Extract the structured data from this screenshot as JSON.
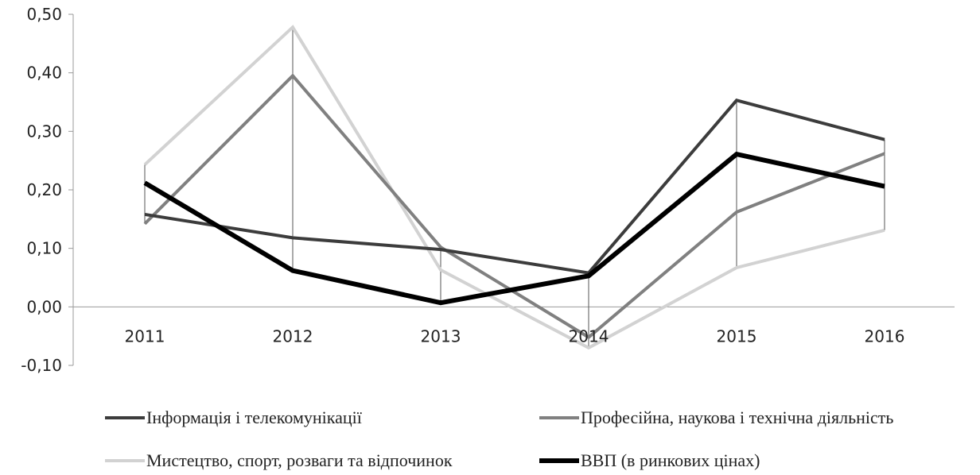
{
  "chart_data": {
    "type": "line",
    "title": "",
    "xlabel": "",
    "ylabel": "",
    "x": [
      "2011",
      "2012",
      "2013",
      "2014",
      "2015",
      "2016"
    ],
    "y_ticks": [
      "-0,10",
      "0,00",
      "0,10",
      "0,20",
      "0,30",
      "0,40",
      "0,50"
    ],
    "ylim": [
      -0.1,
      0.5
    ],
    "grid": false,
    "legend_position": "bottom",
    "series": [
      {
        "name": "Інформація і телекомунікації",
        "color": "#3c3c3c",
        "values": [
          0.158,
          0.118,
          0.098,
          0.058,
          0.353,
          0.286
        ]
      },
      {
        "name": "Професійна, наукова і технічна діяльність",
        "color": "#808080",
        "values": [
          0.142,
          0.395,
          0.102,
          -0.052,
          0.162,
          0.262
        ]
      },
      {
        "name": "Мистецтво, спорт, розваги та відпочинок",
        "color": "#d2d2d2",
        "values": [
          0.243,
          0.478,
          0.063,
          -0.07,
          0.067,
          0.131
        ]
      },
      {
        "name": "ВВП (в ринкових цінах)",
        "color": "#000000",
        "values": [
          0.212,
          0.062,
          0.007,
          0.053,
          0.261,
          0.206
        ]
      }
    ]
  }
}
